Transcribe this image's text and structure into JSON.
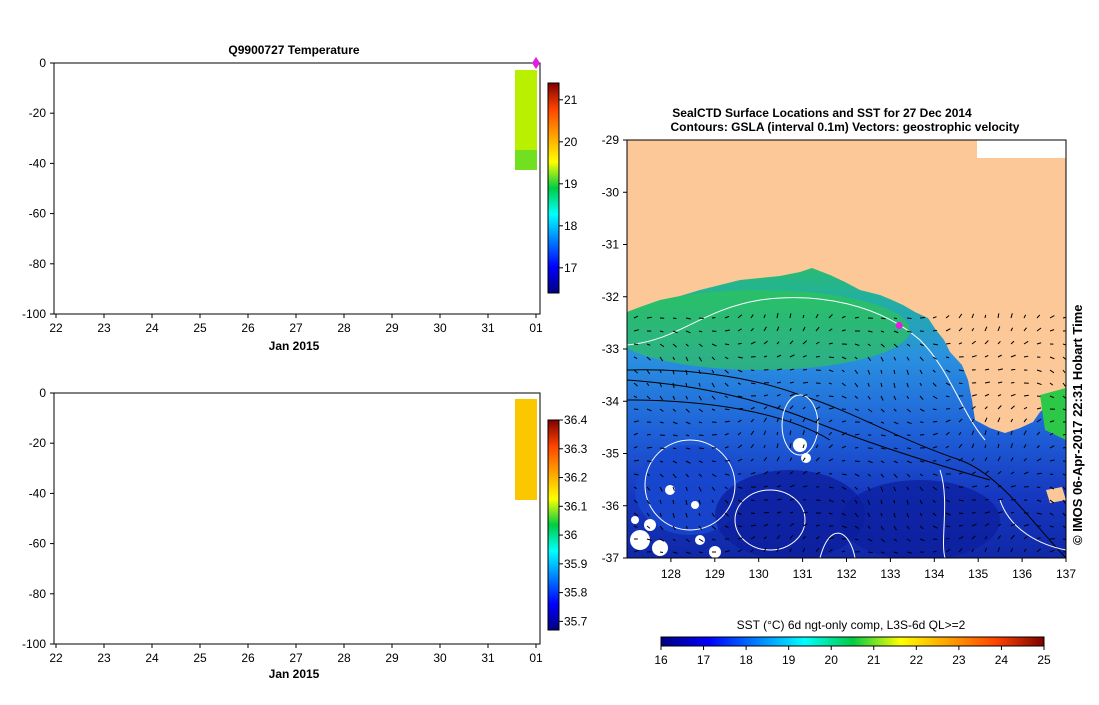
{
  "chart_data": [
    {
      "type": "heatmap",
      "title": "Q9900727  Temperature",
      "x_ticks": [
        "22",
        "23",
        "24",
        "25",
        "26",
        "27",
        "28",
        "29",
        "30",
        "31",
        "01"
      ],
      "xlabel": "Jan 2015",
      "y_ticks": [
        "0",
        "-20",
        "-40",
        "-60",
        "-80",
        "-100"
      ],
      "ylim": [
        -100,
        0
      ],
      "series": [
        {
          "depth_range": [
            -3,
            -43
          ],
          "approx_value": 19.4
        }
      ],
      "marker_color": "#e020e0",
      "colorbar": {
        "ticks": [
          "17",
          "18",
          "19",
          "20",
          "21"
        ],
        "range": [
          16.4,
          21.4
        ]
      }
    },
    {
      "type": "heatmap",
      "title": "",
      "x_ticks": [
        "22",
        "23",
        "24",
        "25",
        "26",
        "27",
        "28",
        "29",
        "30",
        "31",
        "01"
      ],
      "xlabel": "Jan 2015",
      "y_ticks": [
        "0",
        "-20",
        "-40",
        "-60",
        "-80",
        "-100"
      ],
      "ylim": [
        -100,
        0
      ],
      "series": [
        {
          "depth_range": [
            -3,
            -43
          ],
          "approx_value": 36.25
        }
      ],
      "colorbar": {
        "ticks": [
          "35.7",
          "35.8",
          "35.9",
          "36",
          "36.1",
          "36.2",
          "36.3",
          "36.4"
        ],
        "range": [
          35.67,
          36.4
        ]
      }
    },
    {
      "type": "heatmap",
      "title_line1": "SealCTD Surface Locations and SST for 27 Dec 2014",
      "title_line2": "Contours: GSLA (interval 0.1m) Vectors: geostrophic velocity",
      "x_ticks": [
        "128",
        "129",
        "130",
        "131",
        "132",
        "133",
        "134",
        "135",
        "136",
        "137"
      ],
      "y_ticks": [
        "-29",
        "-30",
        "-31",
        "-32",
        "-33",
        "-34",
        "-35",
        "-36",
        "-37"
      ],
      "xlim": [
        127,
        137
      ],
      "ylim": [
        -37,
        -29
      ],
      "seal_location": [
        133.2,
        -32.55
      ],
      "colorbar": {
        "label": "SST (°C) 6d ngt-only comp, L3S-6d QL>=2",
        "ticks": [
          "16",
          "17",
          "18",
          "19",
          "20",
          "21",
          "22",
          "23",
          "24",
          "25"
        ],
        "range": [
          16,
          25
        ]
      },
      "credit": "© IMOS 06-Apr-2017 22:31 Hobart Time"
    }
  ],
  "colors": {
    "land": "#fcc898",
    "marker": "#e020e0"
  }
}
